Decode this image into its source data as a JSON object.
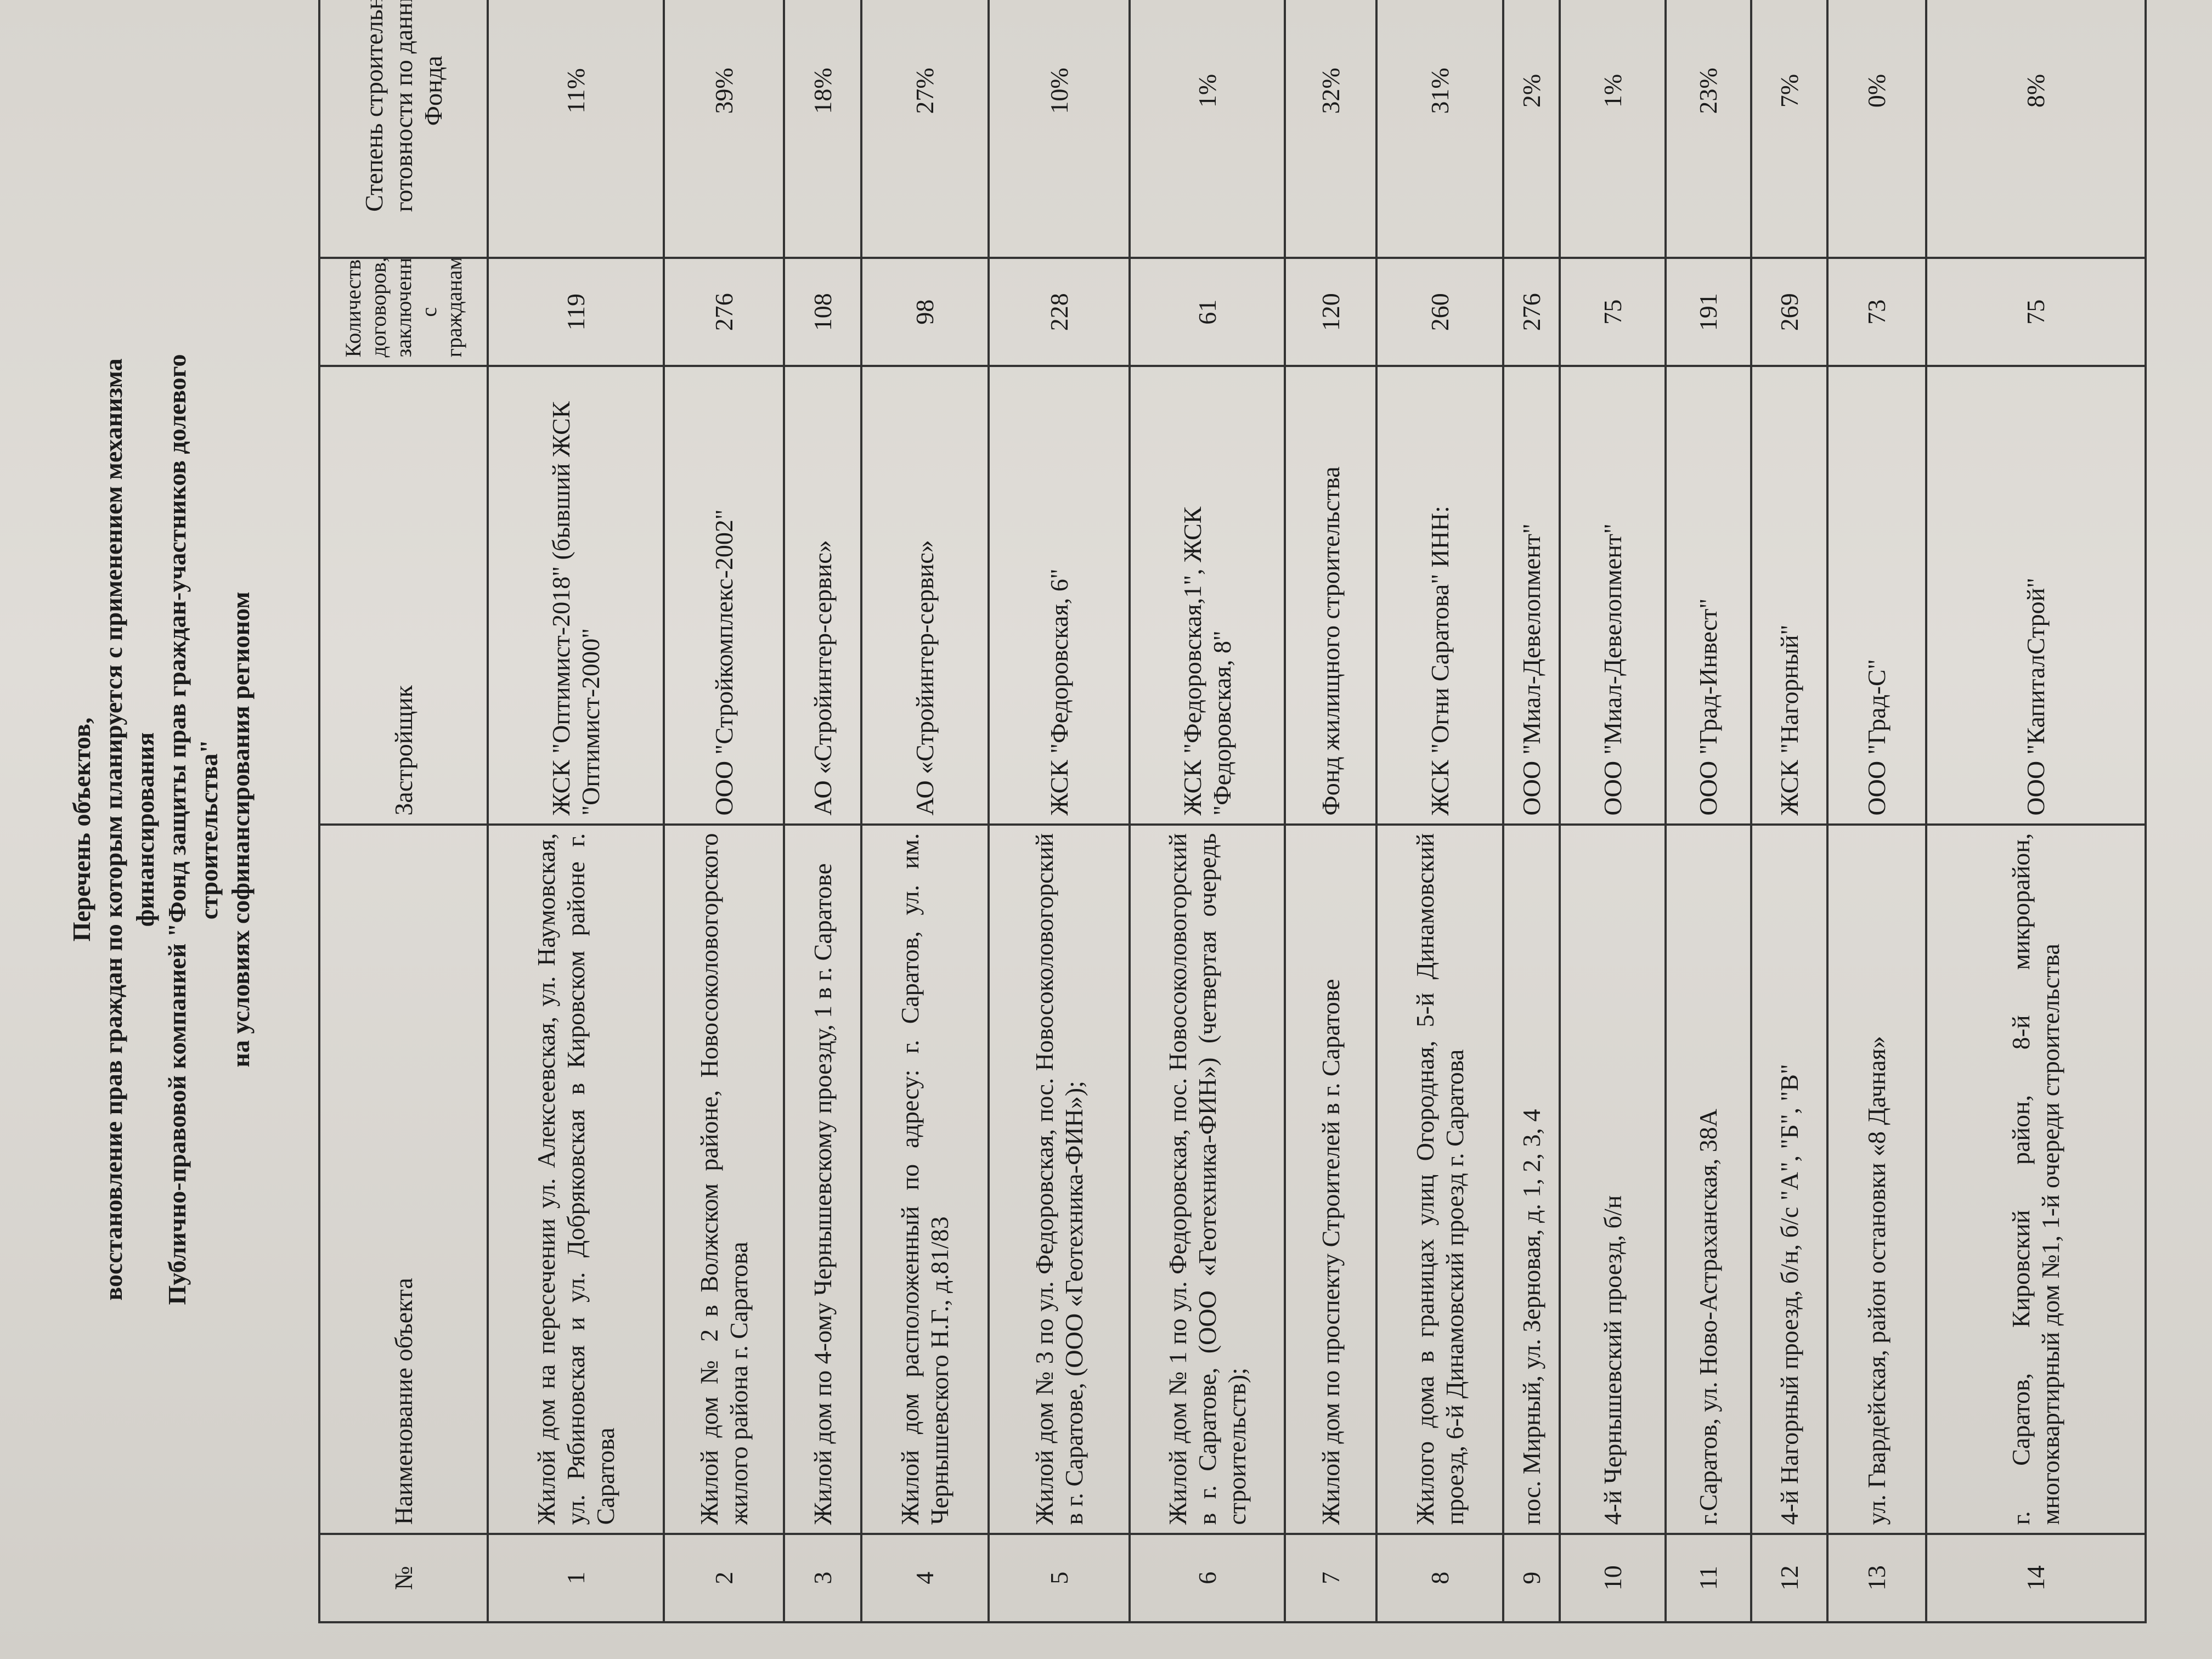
{
  "title_lines": [
    "Перечень объектов,",
    "восстановление прав граждан по которым планируется с применением механизма",
    "финансирования",
    "Публично-правовой компанией \"Фонд защиты прав граждан-участников долевого",
    "строительства\"",
    "на условиях софинансирования регионом"
  ],
  "headers": [
    "№",
    "Наименование объекта",
    "Застройщик",
    "Количество договоров, заключенных с гражданами",
    "Степень строительной готовности по данным Фонда"
  ],
  "rows": [
    {
      "n": "1",
      "name": "Жилой дом на пересечении ул. Алексеевская, ул. Наумовская, ул. Рябиновская и ул. Добряковская в Кировском районе г. Саратова",
      "dev": "ЖСК \"Оптимист-2018\" (бывший ЖСК \"Оптимист-2000\"",
      "count": "119",
      "pct": "11%"
    },
    {
      "n": "2",
      "name": "Жилой дом № 2 в Волжском районе, Новосоколовогорского жилого района г. Саратова",
      "dev": "ООО \"Стройкомплекс-2002\"",
      "count": "276",
      "pct": "39%"
    },
    {
      "n": "3",
      "name": "Жилой дом по 4-ому Чернышевскому проезду, 1 в г. Саратове",
      "dev": "АО «Стройинтер-сервис»",
      "count": "108",
      "pct": "18%"
    },
    {
      "n": "4",
      "name": "Жилой дом расположенный по адресу: г. Саратов, ул. им. Чернышевского Н.Г., д.81/83",
      "dev": "АО «Стройинтер-сервис»",
      "count": "98",
      "pct": "27%"
    },
    {
      "n": "5",
      "name": "Жилой дом № 3 по ул. Федоровская, пос. Новосоколовогорский в г. Саратове, (ООО «Геотехника-ФИН»);",
      "dev": "ЖСК \"Федоровская, 6\"",
      "count": "228",
      "pct": "10%"
    },
    {
      "n": "6",
      "name": "Жилой дом № 1 по ул. Федоровская, пос. Новосоколовогорский в г. Саратове, (ООО «Геотехника-ФИН») (четвертая очередь строительств);",
      "dev": "ЖСК \"Федоровская,1\", ЖСК \"Федоровская, 8\"",
      "count": "61",
      "pct": "1%"
    },
    {
      "n": "7",
      "name": "Жилой дом по проспекту Строителей в г. Саратове",
      "dev": "Фонд жилищного строительства",
      "count": "120",
      "pct": "32%"
    },
    {
      "n": "8",
      "name": "Жилого дома в границах улиц Огородная, 5-й Динамовский проезд, 6-й Динамовский проезд г. Саратова",
      "dev": "ЖСК \"Огни Саратова\" ИНН:",
      "count": "260",
      "pct": "31%"
    },
    {
      "n": "9",
      "name": "пос. Мирный, ул. Зерновая, д. 1, 2, 3, 4",
      "dev": "ООО \"Миал-Девелопмент\"",
      "count": "276",
      "pct": "2%"
    },
    {
      "n": "10",
      "name": "4-й Чернышевский проезд, б/н",
      "dev": "ООО \"Миал-Девелопмент\"",
      "count": "75",
      "pct": "1%"
    },
    {
      "n": "11",
      "name": "г.Саратов, ул. Ново-Астраханская, 38А",
      "dev": "ООО \"Град-Инвест\"",
      "count": "191",
      "pct": "23%"
    },
    {
      "n": "12",
      "name": "4-й Нагорный проезд, б/н, б/с \"А\", \"Б\", \"В\"",
      "dev": "ЖСК \"Нагорный\"",
      "count": "269",
      "pct": "7%"
    },
    {
      "n": "13",
      "name": "ул. Гвардейская, район остановки «8 Дачная»",
      "dev": "ООО \"Град-С\"",
      "count": "73",
      "pct": "0%"
    },
    {
      "n": "14",
      "name": "г. Саратов, Кировский район, 8-й микрорайон, многоквартирный дом №1, 1-й очереди строительства",
      "dev": "ООО \"КапиталСтрой\"",
      "count": "75",
      "pct": "8%"
    }
  ]
}
